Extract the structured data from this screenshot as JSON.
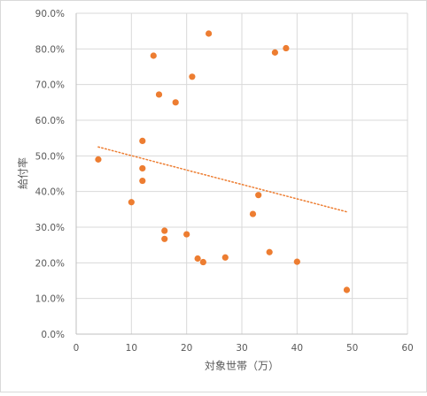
{
  "chart_data": {
    "type": "scatter",
    "title": "",
    "xlabel": "対象世帯（万）",
    "ylabel": "給付率",
    "xlim": [
      0,
      60
    ],
    "ylim": [
      0,
      0.9
    ],
    "x_ticks": [
      "0",
      "10",
      "20",
      "30",
      "40",
      "50",
      "60"
    ],
    "y_ticks": [
      "0.0%",
      "10.0%",
      "20.0%",
      "30.0%",
      "40.0%",
      "50.0%",
      "60.0%",
      "70.0%",
      "80.0%",
      "90.0%"
    ],
    "grid": true,
    "legend": "none",
    "series": [
      {
        "points": [
          [
            4,
            0.49
          ],
          [
            10,
            0.37
          ],
          [
            12,
            0.542
          ],
          [
            12,
            0.465
          ],
          [
            12,
            0.43
          ],
          [
            14,
            0.781
          ],
          [
            15,
            0.672
          ],
          [
            16,
            0.29
          ],
          [
            16,
            0.267
          ],
          [
            18,
            0.65
          ],
          [
            20,
            0.28
          ],
          [
            21,
            0.722
          ],
          [
            22,
            0.212
          ],
          [
            23,
            0.202
          ],
          [
            24,
            0.843
          ],
          [
            27,
            0.215
          ],
          [
            32,
            0.337
          ],
          [
            33,
            0.39
          ],
          [
            35,
            0.23
          ],
          [
            36,
            0.79
          ],
          [
            38,
            0.802
          ],
          [
            40,
            0.203
          ],
          [
            49,
            0.124
          ]
        ],
        "color": "#ED7D31"
      }
    ],
    "trendline": {
      "type": "linear",
      "from": [
        4,
        0.525
      ],
      "to": [
        49,
        0.343
      ],
      "color": "#ED7D31",
      "style": "dotted"
    }
  }
}
